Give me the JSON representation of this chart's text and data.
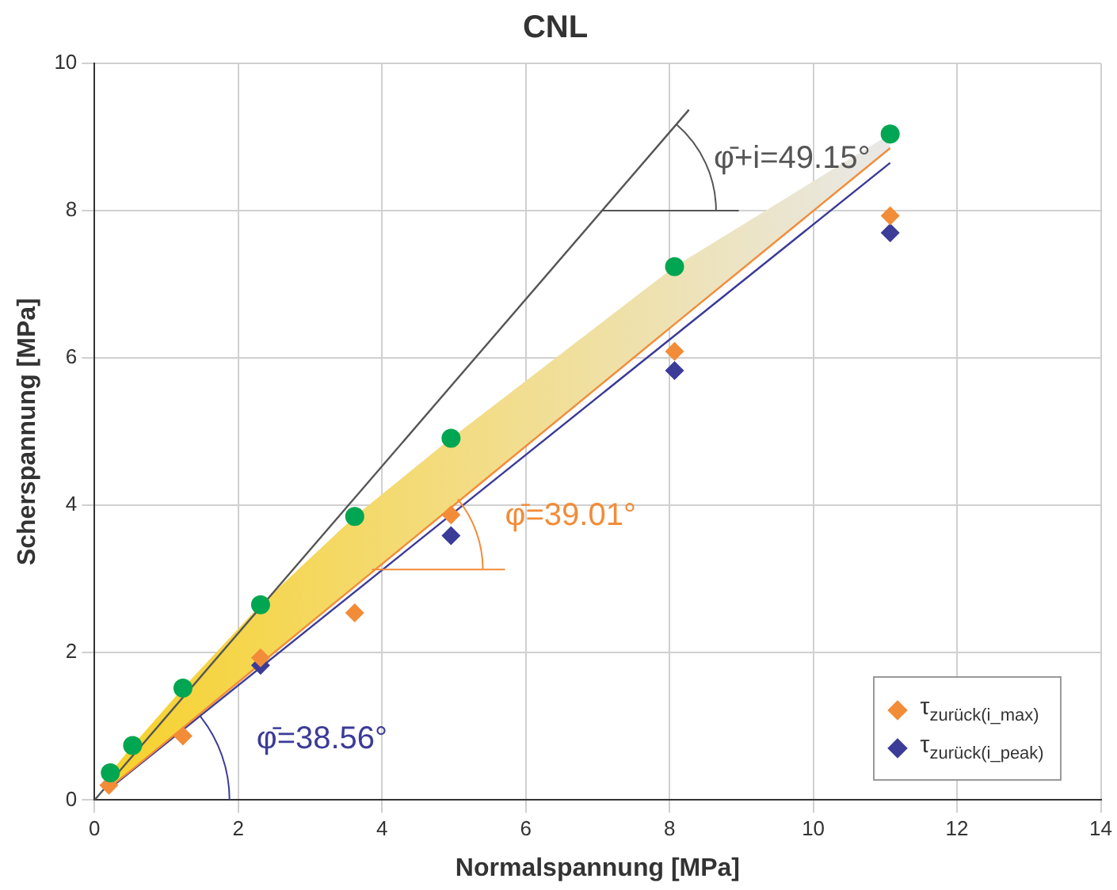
{
  "chart_data": {
    "type": "scatter",
    "title": "CNL",
    "xlabel": "Normalspannung [MPa]",
    "ylabel": "Scherspannung [MPa]",
    "xlim": [
      0,
      14
    ],
    "ylim": [
      0,
      10
    ],
    "xticks": [
      0,
      2,
      4,
      6,
      8,
      10,
      12,
      14
    ],
    "yticks": [
      0,
      2,
      4,
      6,
      8,
      10
    ],
    "grid": true,
    "legend": "bottom right",
    "series": [
      {
        "type": "line",
        "color": "#f28c38",
        "marker": "none",
        "x": [
          0.22,
          0.53,
          1.23,
          2.31,
          3.62,
          4.96,
          8.07,
          11.07
        ],
        "values": [
          0.18,
          0.42,
          0.98,
          1.85,
          2.9,
          3.97,
          6.46,
          8.85
        ],
        "lower": [
          0.18,
          0.42,
          0.98,
          1.85,
          2.9,
          3.97,
          6.46,
          8.85
        ],
        "upper": [
          0.37,
          0.74,
          1.52,
          2.65,
          3.85,
          4.91,
          7.24,
          9.04
        ]
      },
      {
        "type": "line",
        "color": "#3b3b98",
        "marker": "none",
        "x": [
          0.2,
          11.07
        ],
        "values": [
          0.15,
          8.65
        ]
      },
      {
        "type": "line",
        "color": "#555555",
        "marker": "none",
        "x": [
          0,
          8.27
        ],
        "values": [
          0,
          9.37
        ]
      },
      {
        "type": "scatter",
        "color": "#00a651",
        "marker": "circle",
        "x": [
          0.22,
          0.53,
          1.23,
          2.31,
          3.62,
          4.96,
          8.07,
          11.07
        ],
        "values": [
          0.37,
          0.74,
          1.52,
          2.65,
          3.85,
          4.91,
          7.24,
          9.04
        ]
      },
      {
        "name": "τ$_{zurück(i_max)}$",
        "type": "scatter",
        "color": "#f28c38",
        "marker": "diamond",
        "x": [
          0.2,
          1.23,
          2.31,
          3.62,
          4.96,
          8.07,
          11.07
        ],
        "values": [
          0.2,
          0.87,
          1.93,
          2.54,
          3.87,
          6.09,
          7.93
        ]
      },
      {
        "name": "τ$_{zurück(i_peak)}$",
        "type": "scatter",
        "color": "#3b3b98",
        "marker": "diamond",
        "x": [
          2.31,
          4.96,
          8.07,
          11.07
        ],
        "values": [
          1.83,
          3.59,
          5.83,
          7.7
        ]
      }
    ],
    "annotations": [
      {
        "text": "φ̄=39.01°",
        "x": 3.86,
        "y": 3.13
      },
      "φ̄=38.56°",
      {
        "text": "φ̄+i=49.15°",
        "x": 7.06,
        "y": 8.0
      }
    ]
  }
}
